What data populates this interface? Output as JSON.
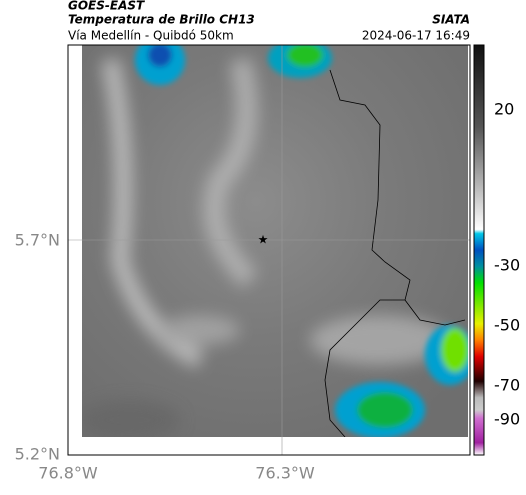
{
  "header": {
    "source": "GOES-EAST",
    "title": "Temperatura de Brillo CH13",
    "agency": "SIATA",
    "subtitle": "Vía Medellín - Quibdó 50km",
    "datetime": "2024-06-17 16:49"
  },
  "map": {
    "lat_labels": [
      "5.7°N",
      "5.2°N"
    ],
    "lon_labels": [
      "76.8°W",
      "76.3°W"
    ]
  },
  "colorbar": {
    "tick_labels": [
      "20",
      "-30",
      "-50",
      "-70",
      "-90"
    ]
  }
}
